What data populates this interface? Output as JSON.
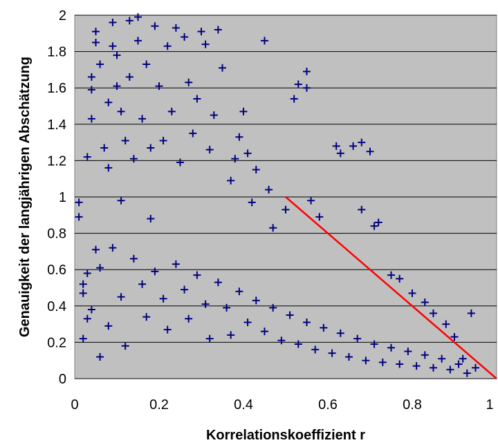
{
  "colors": {
    "plot_background": "#c0c0c0",
    "gridline": "#000000",
    "marker": "#000080",
    "fit_line": "#ff0000"
  },
  "chart_data": {
    "type": "scatter",
    "title": "",
    "xlabel": "Korrelationskoeffizient r",
    "ylabel": "Genauigkeit der langjährigen Abschätzung",
    "xlim": [
      0,
      1
    ],
    "ylim": [
      0,
      2
    ],
    "x_ticks": [
      "0",
      "0.2",
      "0.4",
      "0.6",
      "0.8",
      "1"
    ],
    "y_ticks": [
      "0",
      "0.2",
      "0.4",
      "0.6",
      "0.8",
      "1",
      "1.2",
      "1.4",
      "1.6",
      "1.8",
      "2"
    ],
    "grid": "horizontal",
    "marker": "+",
    "points": [
      [
        0.01,
        0.97
      ],
      [
        0.01,
        0.89
      ],
      [
        0.02,
        0.47
      ],
      [
        0.02,
        0.22
      ],
      [
        0.03,
        0.33
      ],
      [
        0.03,
        0.58
      ],
      [
        0.03,
        1.22
      ],
      [
        0.04,
        1.43
      ],
      [
        0.04,
        1.59
      ],
      [
        0.04,
        1.66
      ],
      [
        0.05,
        1.85
      ],
      [
        0.05,
        1.91
      ],
      [
        0.05,
        0.71
      ],
      [
        0.06,
        0.12
      ],
      [
        0.06,
        1.73
      ],
      [
        0.07,
        1.27
      ],
      [
        0.08,
        1.16
      ],
      [
        0.08,
        1.52
      ],
      [
        0.09,
        1.96
      ],
      [
        0.09,
        1.83
      ],
      [
        0.1,
        1.78
      ],
      [
        0.1,
        1.61
      ],
      [
        0.11,
        1.47
      ],
      [
        0.11,
        0.98
      ],
      [
        0.12,
        1.31
      ],
      [
        0.13,
        1.97
      ],
      [
        0.13,
        1.66
      ],
      [
        0.14,
        1.21
      ],
      [
        0.15,
        1.99
      ],
      [
        0.15,
        1.86
      ],
      [
        0.16,
        1.43
      ],
      [
        0.17,
        1.73
      ],
      [
        0.18,
        1.27
      ],
      [
        0.18,
        0.88
      ],
      [
        0.19,
        1.94
      ],
      [
        0.2,
        1.61
      ],
      [
        0.21,
        1.31
      ],
      [
        0.22,
        1.83
      ],
      [
        0.23,
        1.47
      ],
      [
        0.24,
        1.93
      ],
      [
        0.25,
        1.19
      ],
      [
        0.26,
        1.88
      ],
      [
        0.27,
        1.63
      ],
      [
        0.28,
        1.35
      ],
      [
        0.29,
        1.54
      ],
      [
        0.3,
        1.91
      ],
      [
        0.31,
        1.84
      ],
      [
        0.32,
        1.26
      ],
      [
        0.33,
        1.45
      ],
      [
        0.34,
        1.92
      ],
      [
        0.35,
        1.71
      ],
      [
        0.37,
        1.09
      ],
      [
        0.38,
        1.21
      ],
      [
        0.39,
        1.33
      ],
      [
        0.4,
        1.47
      ],
      [
        0.41,
        1.24
      ],
      [
        0.42,
        0.97
      ],
      [
        0.43,
        1.15
      ],
      [
        0.45,
        1.86
      ],
      [
        0.46,
        1.04
      ],
      [
        0.47,
        0.83
      ],
      [
        0.5,
        0.93
      ],
      [
        0.52,
        1.54
      ],
      [
        0.53,
        1.62
      ],
      [
        0.55,
        1.6
      ],
      [
        0.55,
        1.69
      ],
      [
        0.56,
        0.98
      ],
      [
        0.58,
        0.89
      ],
      [
        0.62,
        1.28
      ],
      [
        0.63,
        1.24
      ],
      [
        0.66,
        1.28
      ],
      [
        0.68,
        1.3
      ],
      [
        0.7,
        1.25
      ],
      [
        0.68,
        0.93
      ],
      [
        0.71,
        0.84
      ],
      [
        0.72,
        0.86
      ],
      [
        0.75,
        0.57
      ],
      [
        0.77,
        0.55
      ],
      [
        0.8,
        0.47
      ],
      [
        0.83,
        0.42
      ],
      [
        0.85,
        0.36
      ],
      [
        0.88,
        0.3
      ],
      [
        0.9,
        0.23
      ],
      [
        0.92,
        0.11
      ],
      [
        0.94,
        0.36
      ],
      [
        0.95,
        0.06
      ],
      [
        0.02,
        0.52
      ],
      [
        0.04,
        0.38
      ],
      [
        0.06,
        0.61
      ],
      [
        0.08,
        0.29
      ],
      [
        0.09,
        0.72
      ],
      [
        0.11,
        0.45
      ],
      [
        0.12,
        0.18
      ],
      [
        0.14,
        0.66
      ],
      [
        0.16,
        0.52
      ],
      [
        0.17,
        0.34
      ],
      [
        0.19,
        0.59
      ],
      [
        0.21,
        0.44
      ],
      [
        0.22,
        0.27
      ],
      [
        0.24,
        0.63
      ],
      [
        0.26,
        0.49
      ],
      [
        0.27,
        0.33
      ],
      [
        0.29,
        0.57
      ],
      [
        0.31,
        0.41
      ],
      [
        0.32,
        0.22
      ],
      [
        0.34,
        0.53
      ],
      [
        0.36,
        0.39
      ],
      [
        0.37,
        0.24
      ],
      [
        0.39,
        0.48
      ],
      [
        0.41,
        0.31
      ],
      [
        0.43,
        0.43
      ],
      [
        0.45,
        0.26
      ],
      [
        0.47,
        0.39
      ],
      [
        0.49,
        0.21
      ],
      [
        0.51,
        0.35
      ],
      [
        0.53,
        0.19
      ],
      [
        0.55,
        0.31
      ],
      [
        0.57,
        0.16
      ],
      [
        0.59,
        0.28
      ],
      [
        0.61,
        0.14
      ],
      [
        0.63,
        0.25
      ],
      [
        0.65,
        0.12
      ],
      [
        0.67,
        0.22
      ],
      [
        0.69,
        0.1
      ],
      [
        0.71,
        0.19
      ],
      [
        0.73,
        0.09
      ],
      [
        0.75,
        0.17
      ],
      [
        0.77,
        0.08
      ],
      [
        0.79,
        0.15
      ],
      [
        0.81,
        0.07
      ],
      [
        0.83,
        0.13
      ],
      [
        0.85,
        0.06
      ],
      [
        0.87,
        0.11
      ],
      [
        0.89,
        0.05
      ],
      [
        0.91,
        0.08
      ],
      [
        0.93,
        0.03
      ]
    ],
    "fit_line": {
      "x": [
        0.5,
        1.0
      ],
      "y": [
        1.0,
        0.0
      ]
    }
  }
}
